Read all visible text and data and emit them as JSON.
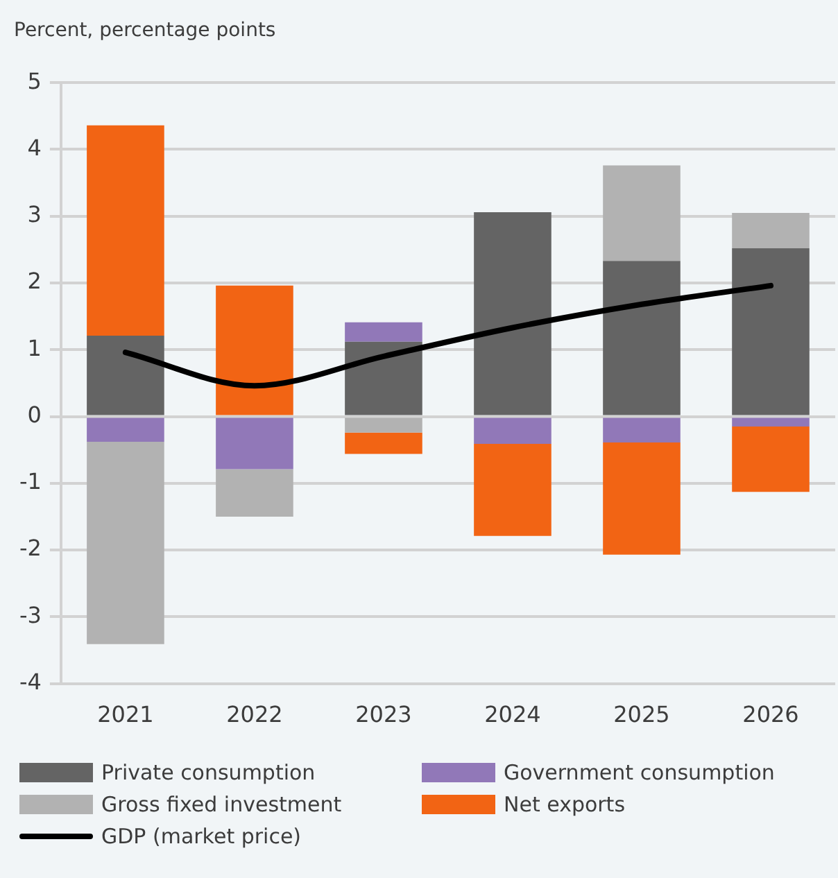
{
  "chart_data": {
    "type": "bar",
    "stacked": true,
    "ylabel": "Percent, percentage points",
    "categories": [
      "2021",
      "2022",
      "2023",
      "2024",
      "2025",
      "2026"
    ],
    "series": [
      {
        "name": "Private consumption",
        "color": "#646464",
        "values": [
          1.21,
          0,
          1.12,
          3.06,
          2.33,
          2.52
        ]
      },
      {
        "name": "Government consumption",
        "color": "#9178b8",
        "values": [
          -0.38,
          -0.79,
          0.29,
          -0.41,
          -0.39,
          -0.15
        ]
      },
      {
        "name": "Gross fixed investment",
        "color": "#b2b2b2",
        "values": [
          -3.03,
          -0.71,
          -0.24,
          0,
          1.43,
          0.53
        ]
      },
      {
        "name": "Net exports",
        "color": "#f26414",
        "values": [
          3.15,
          1.96,
          -0.32,
          -1.38,
          -1.68,
          -0.98
        ]
      },
      {
        "name": "GDP (market price)",
        "type": "line",
        "color": "#000000",
        "values": [
          0.96,
          0.46,
          0.9,
          1.33,
          1.68,
          1.96
        ]
      }
    ],
    "ylim": [
      -4,
      5
    ],
    "yticks": [
      -4,
      -3,
      -2,
      -1,
      0,
      1,
      2,
      3,
      4,
      5
    ],
    "grid": "y",
    "legend": "bottom",
    "marker": "none"
  }
}
